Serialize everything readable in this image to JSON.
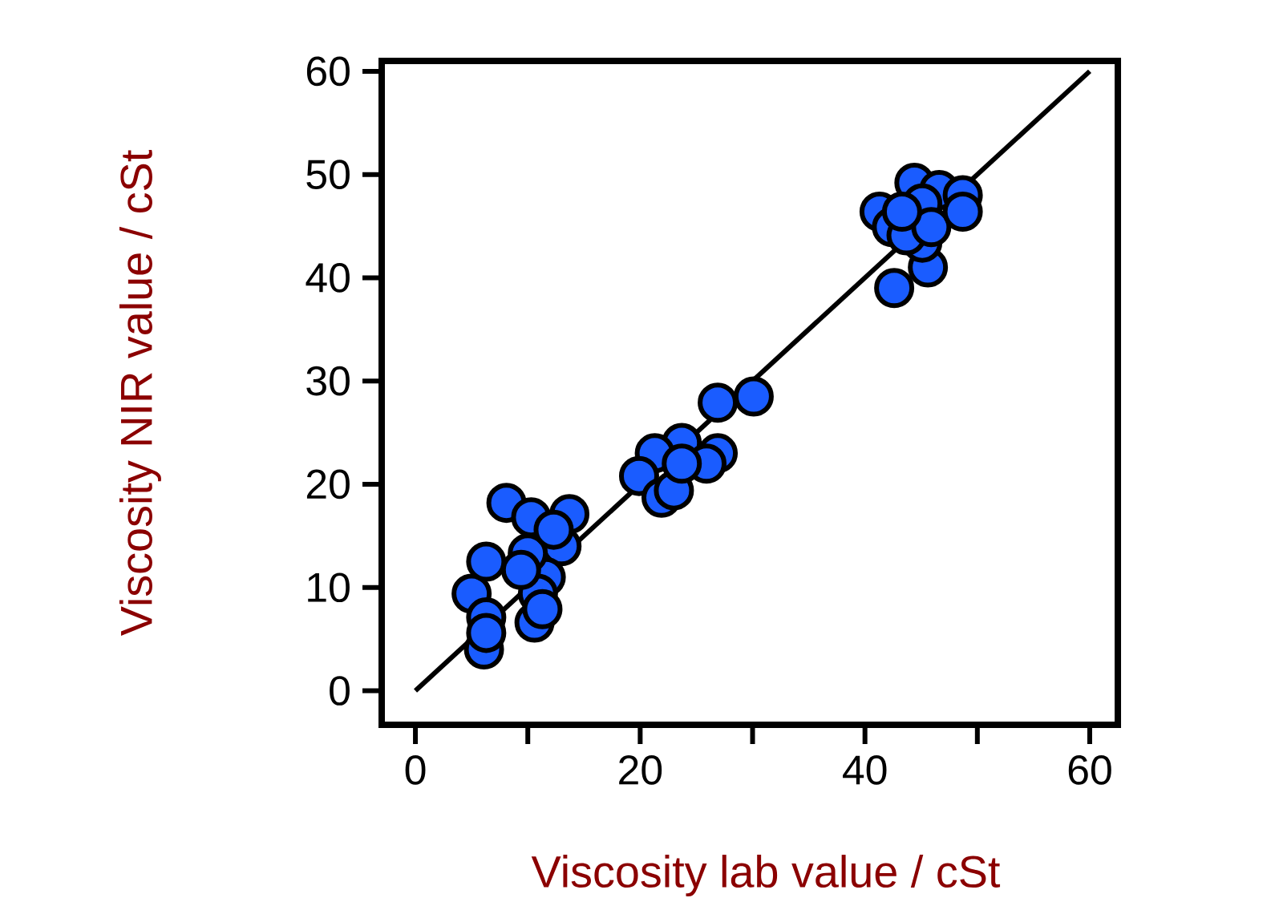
{
  "chart_data": {
    "type": "scatter",
    "xlabel": "Viscosity lab value / cSt",
    "ylabel": "Viscosity NIR value / cSt",
    "xlim": [
      -3,
      62.5
    ],
    "ylim": [
      -3.3,
      61
    ],
    "xticks": [
      0,
      {
        "value": 10,
        "label": null
      },
      20,
      {
        "value": 30,
        "label": null
      },
      40,
      {
        "value": 50,
        "label": null
      },
      60
    ],
    "yticks": [
      0,
      10,
      20,
      30,
      40,
      50,
      60
    ],
    "grid": false,
    "series": [
      {
        "type": "line",
        "color": "#000000",
        "line_style": "solid",
        "marker": "none",
        "x": [
          0,
          60
        ],
        "values": [
          0,
          60
        ]
      },
      {
        "type": "scatter",
        "color": "#1a5cff",
        "marker": "circle",
        "x": [
          5,
          6.3,
          6.1,
          6.3,
          8.1,
          10.3,
          13.7,
          13,
          11.6,
          10.6,
          10.9,
          10,
          12.3,
          6.3,
          11.3,
          9.4,
          23.7,
          26.9,
          30.1,
          26.9,
          21.3,
          19.9,
          21.9,
          23,
          25.9,
          23.7,
          42.6,
          41.3,
          44.4,
          46.6,
          48.7,
          45.1,
          45.6,
          45.1,
          42.4,
          43.7,
          45.9,
          48.7,
          43.3
        ],
        "values": [
          9.4,
          12.5,
          4,
          7.1,
          18.2,
          16.8,
          17.1,
          14,
          11,
          6.6,
          9.4,
          13.3,
          15.6,
          5.6,
          7.9,
          11.7,
          24,
          27.9,
          28.5,
          23,
          23,
          20.8,
          18.7,
          19.4,
          22,
          22,
          39,
          46.4,
          49.2,
          48.5,
          48,
          47.2,
          41,
          43.4,
          44.9,
          44.1,
          44.9,
          46.4,
          46.4
        ]
      }
    ]
  }
}
